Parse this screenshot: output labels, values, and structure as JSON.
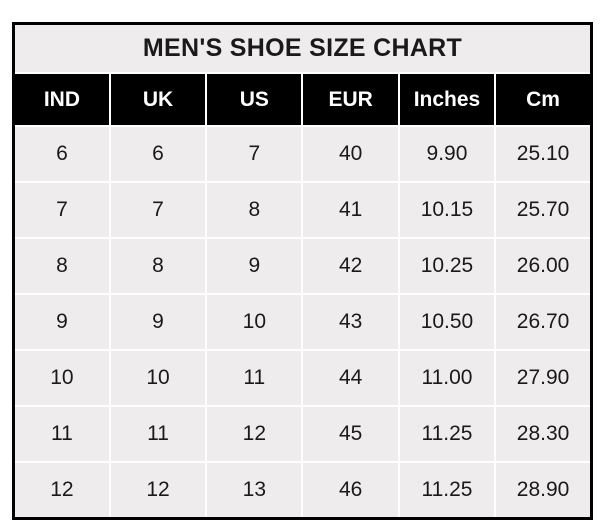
{
  "table": {
    "title": "MEN'S SHOE SIZE CHART",
    "columns": [
      "IND",
      "UK",
      "US",
      "EUR",
      "Inches",
      "Cm"
    ],
    "rows": [
      [
        "6",
        "6",
        "7",
        "40",
        "9.90",
        "25.10"
      ],
      [
        "7",
        "7",
        "8",
        "41",
        "10.15",
        "25.70"
      ],
      [
        "8",
        "8",
        "9",
        "42",
        "10.25",
        "26.00"
      ],
      [
        "9",
        "9",
        "10",
        "43",
        "10.50",
        "26.70"
      ],
      [
        "10",
        "10",
        "11",
        "44",
        "11.00",
        "27.90"
      ],
      [
        "11",
        "11",
        "12",
        "45",
        "11.25",
        "28.30"
      ],
      [
        "12",
        "12",
        "13",
        "46",
        "11.25",
        "28.90"
      ]
    ],
    "colors": {
      "outer_border": "#000000",
      "header_bg": "#000000",
      "header_text": "#ffffff",
      "title_bg": "#eeecec",
      "cell_bg": "#eeecec",
      "gridline": "#ffffff",
      "body_text": "#1a1a1a",
      "page_bg": "#ffffff"
    }
  }
}
